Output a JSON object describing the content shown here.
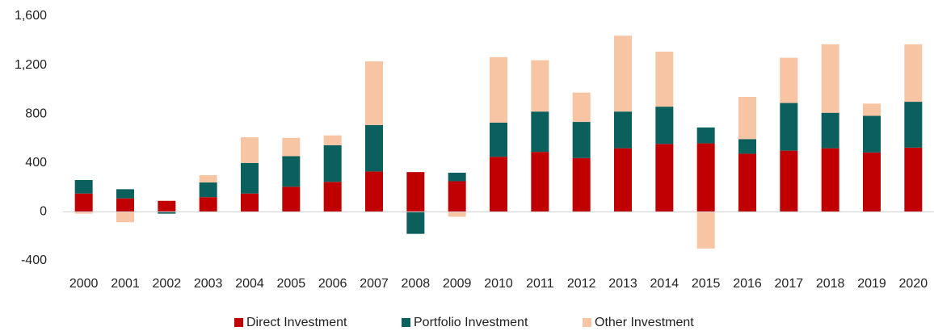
{
  "chart_data": {
    "type": "bar",
    "stacked": true,
    "categories": [
      "2000",
      "2001",
      "2002",
      "2003",
      "2004",
      "2005",
      "2006",
      "2007",
      "2008",
      "2009",
      "2010",
      "2011",
      "2012",
      "2013",
      "2014",
      "2015",
      "2016",
      "2017",
      "2018",
      "2019",
      "2020"
    ],
    "series": [
      {
        "name": "Direct Investment",
        "color": "#c00000",
        "values": [
          150,
          110,
          90,
          120,
          150,
          205,
          245,
          330,
          325,
          250,
          450,
          490,
          440,
          520,
          555,
          560,
          475,
          500,
          520,
          485,
          525
        ]
      },
      {
        "name": "Portfolio Investment",
        "color": "#0b605e",
        "values": [
          110,
          75,
          -15,
          120,
          250,
          250,
          300,
          380,
          -180,
          70,
          280,
          330,
          295,
          300,
          305,
          130,
          120,
          390,
          290,
          300,
          375
        ]
      },
      {
        "name": "Other Investment",
        "color": "#f8c5a4",
        "values": [
          -15,
          -85,
          0,
          60,
          210,
          150,
          80,
          520,
          0,
          -40,
          535,
          420,
          240,
          620,
          450,
          -300,
          345,
          370,
          560,
          100,
          470
        ]
      }
    ],
    "ylim": [
      -400,
      1600
    ],
    "yticks": [
      -400,
      0,
      400,
      800,
      {
        "value": 1200,
        "label": "1,200"
      },
      {
        "value": 1600,
        "label": "1,600"
      }
    ],
    "grid": false,
    "legend": "bottom"
  }
}
